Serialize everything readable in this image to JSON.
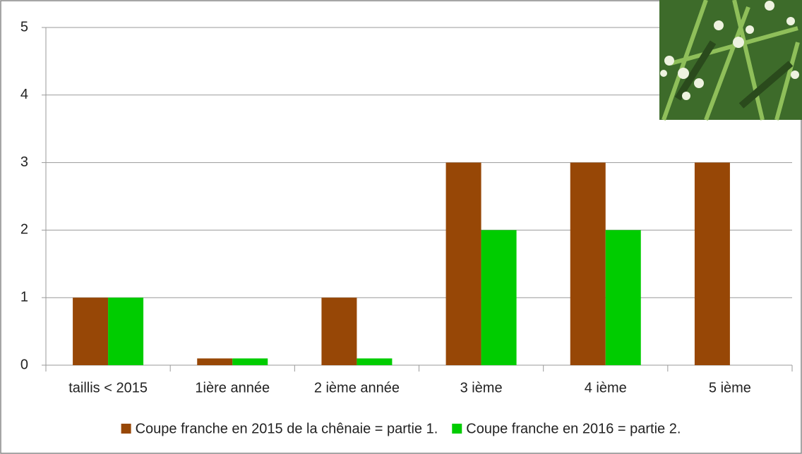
{
  "chart_data": {
    "type": "bar",
    "categories": [
      "taillis < 2015",
      "1ière année",
      "2 ième année",
      "3 ième",
      "4 ième",
      "5 ième"
    ],
    "series": [
      {
        "name": "Coupe franche en 2015 de la chênaie = partie 1.",
        "color": "#974706",
        "values": [
          1,
          0.1,
          1,
          3,
          3,
          3
        ]
      },
      {
        "name": "Coupe franche en 2016 = partie 2.",
        "color": "#00cc00",
        "values": [
          1,
          0.1,
          0.1,
          2,
          2,
          0
        ]
      }
    ],
    "ylim": [
      0,
      5
    ],
    "yticks": [
      0,
      1,
      2,
      3,
      4,
      5
    ],
    "grid": true,
    "legend": "bottom"
  }
}
